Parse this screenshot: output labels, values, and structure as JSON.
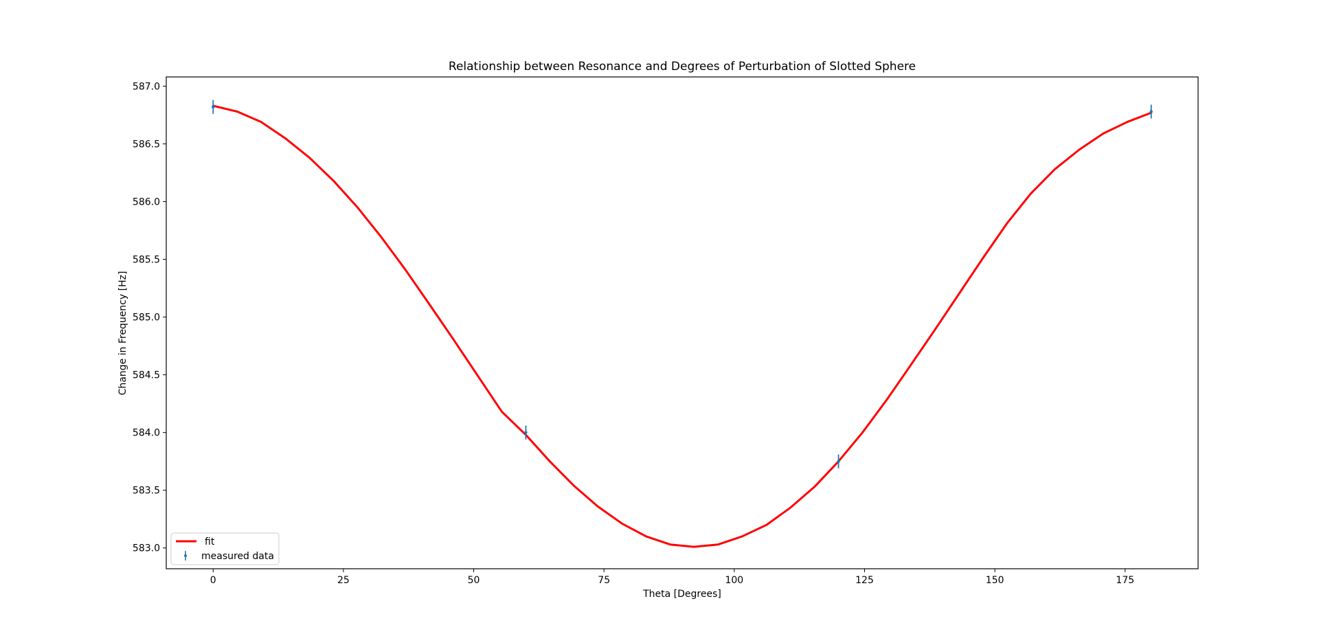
{
  "chart_data": {
    "type": "line",
    "title": "Relationship between Resonance and Degrees of Perturbation of Slotted Sphere",
    "xlabel": "Theta [Degrees]",
    "ylabel": "Change in Frequency [Hz]",
    "xlim": [
      -9,
      189
    ],
    "ylim": [
      582.82,
      587.08
    ],
    "xticks": [
      0,
      25,
      50,
      75,
      100,
      125,
      150,
      175
    ],
    "xtick_labels": [
      "0",
      "25",
      "50",
      "75",
      "100",
      "125",
      "150",
      "175"
    ],
    "yticks": [
      583.0,
      583.5,
      584.0,
      584.5,
      585.0,
      585.5,
      586.0,
      586.5,
      587.0
    ],
    "ytick_labels": [
      "583.0",
      "583.5",
      "584.0",
      "584.5",
      "585.0",
      "585.5",
      "586.0",
      "586.5",
      "587.0"
    ],
    "grid": false,
    "legend_position": "lower-left",
    "series": [
      {
        "name": "fit",
        "kind": "line",
        "color": "#ff0000",
        "x": [
          0,
          4.6,
          9.2,
          13.8,
          18.5,
          23.1,
          27.7,
          32.3,
          36.9,
          41.5,
          46.2,
          50.8,
          55.4,
          60.0,
          64.6,
          69.2,
          73.8,
          78.5,
          83.1,
          87.7,
          92.3,
          96.9,
          101.5,
          106.2,
          110.8,
          115.4,
          120.0,
          124.6,
          129.2,
          133.8,
          138.5,
          143.1,
          147.7,
          152.3,
          156.9,
          161.5,
          166.2,
          170.8,
          175.4,
          180.0
        ],
        "y": [
          586.83,
          586.78,
          586.69,
          586.55,
          586.38,
          586.18,
          585.95,
          585.69,
          585.41,
          585.11,
          584.8,
          584.49,
          584.18,
          583.98,
          583.75,
          583.54,
          583.36,
          583.21,
          583.1,
          583.03,
          583.01,
          583.03,
          583.1,
          583.2,
          583.35,
          583.53,
          583.75,
          584.0,
          584.28,
          584.58,
          584.89,
          585.2,
          585.51,
          585.81,
          586.07,
          586.28,
          586.45,
          586.59,
          586.69,
          586.77
        ]
      },
      {
        "name": "measured data",
        "kind": "errorbar",
        "color": "#1f77b4",
        "x": [
          0,
          60,
          120,
          180
        ],
        "y": [
          586.82,
          584.0,
          583.75,
          586.78
        ],
        "yerr": [
          0.06,
          0.06,
          0.06,
          0.06
        ]
      }
    ]
  }
}
